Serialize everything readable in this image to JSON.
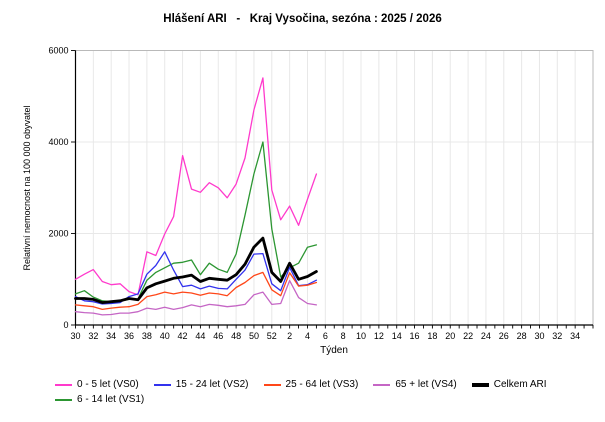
{
  "title": "Hlášení ARI   -   Kraj Vysočina, sezóna : 2025 / 2026",
  "y_axis": {
    "label": "Relativní nemocnost na 100 000 obyvatel",
    "tick_labels": [
      "0",
      "2000",
      "4000",
      "6000"
    ],
    "tick_values": [
      0,
      2000,
      4000,
      6000
    ]
  },
  "x_axis": {
    "label": "Týden",
    "tick_labels": [
      "30",
      "32",
      "34",
      "36",
      "38",
      "40",
      "42",
      "44",
      "46",
      "48",
      "50",
      "52",
      "2",
      "4",
      "6",
      "8",
      "10",
      "12",
      "14",
      "16",
      "18",
      "20",
      "22",
      "24",
      "26",
      "28",
      "30",
      "32",
      "34"
    ],
    "minor_tick_every_weeks": 1,
    "label_every_weeks": 2
  },
  "chart_data": {
    "type": "line",
    "title": "Hlášení ARI - Kraj Vysočina, sezóna : 2025 / 2026",
    "xlabel": "Týden",
    "ylabel": "Relativní nemocnost na 100 000 obyvatel",
    "ylim": [
      0,
      6000
    ],
    "grid": true,
    "legend_position": "bottom",
    "x_weeks": [
      30,
      31,
      32,
      33,
      34,
      35,
      36,
      37,
      38,
      39,
      40,
      41,
      42,
      43,
      44,
      45,
      46,
      47,
      48,
      49,
      50,
      51,
      52,
      1,
      2,
      3,
      4,
      5
    ],
    "series": [
      {
        "name": "0 - 5 let (VS0)",
        "color": "#ff3acc",
        "thick": false,
        "values": [
          1000,
          1110,
          1210,
          950,
          880,
          900,
          730,
          660,
          1600,
          1520,
          1990,
          2370,
          3700,
          2970,
          2900,
          3110,
          3000,
          2780,
          3080,
          3650,
          4700,
          5400,
          2950,
          2300,
          2600,
          2180,
          2750,
          3300
        ]
      },
      {
        "name": "6 - 14 let (VS1)",
        "color": "#2c9632",
        "thick": false,
        "values": [
          680,
          750,
          610,
          530,
          510,
          530,
          560,
          570,
          980,
          1150,
          1250,
          1350,
          1370,
          1420,
          1100,
          1350,
          1220,
          1150,
          1550,
          2400,
          3300,
          4000,
          2100,
          1050,
          1250,
          1350,
          1700,
          1750
        ]
      },
      {
        "name": "15 - 24 let (VS2)",
        "color": "#3232ee",
        "thick": false,
        "values": [
          620,
          530,
          510,
          460,
          470,
          490,
          620,
          680,
          1110,
          1300,
          1600,
          1200,
          840,
          870,
          790,
          850,
          800,
          790,
          1000,
          1200,
          1550,
          1560,
          900,
          750,
          1260,
          860,
          880,
          980
        ]
      },
      {
        "name": "25 - 64 let (VS3)",
        "color": "#ff4719",
        "thick": false,
        "values": [
          440,
          420,
          400,
          340,
          370,
          390,
          400,
          450,
          620,
          660,
          720,
          680,
          720,
          700,
          650,
          700,
          680,
          640,
          820,
          930,
          1080,
          1150,
          770,
          640,
          1140,
          850,
          870,
          930
        ]
      },
      {
        "name": "65 + let (VS4)",
        "color": "#c566c5",
        "thick": false,
        "values": [
          290,
          270,
          260,
          220,
          230,
          260,
          260,
          290,
          370,
          340,
          390,
          340,
          380,
          440,
          400,
          450,
          430,
          400,
          420,
          450,
          660,
          720,
          450,
          470,
          970,
          600,
          470,
          440
        ]
      },
      {
        "name": "Celkem ARI",
        "color": "#000000",
        "thick": true,
        "values": [
          580,
          580,
          560,
          490,
          510,
          530,
          580,
          550,
          810,
          900,
          960,
          1020,
          1050,
          1090,
          950,
          1020,
          1000,
          980,
          1100,
          1330,
          1700,
          1900,
          1150,
          950,
          1350,
          1000,
          1060,
          1170
        ]
      }
    ]
  },
  "legend": {
    "rows": [
      [
        "0 - 5 let (VS0)",
        "15 - 24 let (VS2)",
        "25 - 64 let (VS3)",
        "65 + let (VS4)",
        "Celkem ARI"
      ],
      [
        "6 - 14 let (VS1)"
      ]
    ]
  }
}
